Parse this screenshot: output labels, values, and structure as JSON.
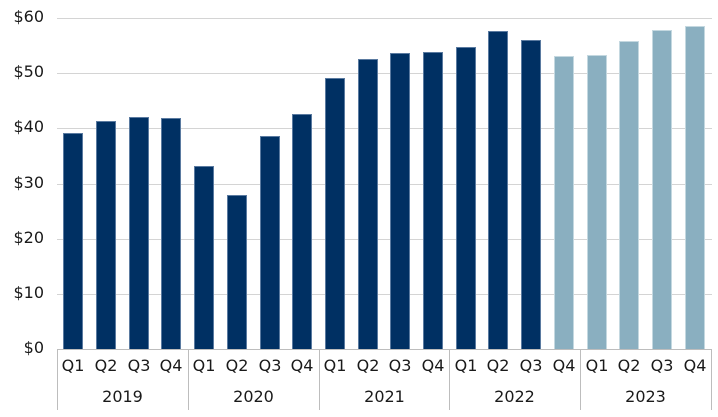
{
  "chart_data": {
    "type": "bar",
    "title": "",
    "xlabel": "",
    "ylabel": "",
    "ylim": [
      0,
      60
    ],
    "yticks": [
      "$0",
      "$10",
      "$20",
      "$30",
      "$40",
      "$50",
      "$60"
    ],
    "grid": true,
    "legend": null,
    "groups": [
      "2019",
      "2020",
      "2021",
      "2022",
      "2023"
    ],
    "categories": [
      "2019 Q1",
      "2019 Q2",
      "2019 Q3",
      "2019 Q4",
      "2020 Q1",
      "2020 Q2",
      "2020 Q3",
      "2020 Q4",
      "2021 Q1",
      "2021 Q2",
      "2021 Q3",
      "2021 Q4",
      "2022 Q1",
      "2022 Q2",
      "2022 Q3",
      "2022 Q4",
      "2023 Q1",
      "2023 Q2",
      "2023 Q3",
      "2023 Q4"
    ],
    "quarter_labels": [
      "Q1",
      "Q2",
      "Q3",
      "Q4"
    ],
    "values": [
      39.1,
      41.3,
      42.0,
      41.9,
      33.2,
      27.9,
      38.6,
      42.6,
      49.1,
      52.5,
      53.6,
      53.8,
      54.7,
      57.6,
      56.0,
      53.1,
      53.3,
      55.8,
      57.8,
      58.5
    ],
    "series_style": [
      "actual",
      "actual",
      "actual",
      "actual",
      "actual",
      "actual",
      "actual",
      "actual",
      "actual",
      "actual",
      "actual",
      "actual",
      "actual",
      "actual",
      "actual",
      "estimate",
      "estimate",
      "estimate",
      "estimate",
      "estimate"
    ],
    "colors": {
      "actual": "#003063",
      "estimate": "#8aafc0",
      "grid": "#d4d4d4",
      "axis": "#bdbdbd"
    }
  }
}
